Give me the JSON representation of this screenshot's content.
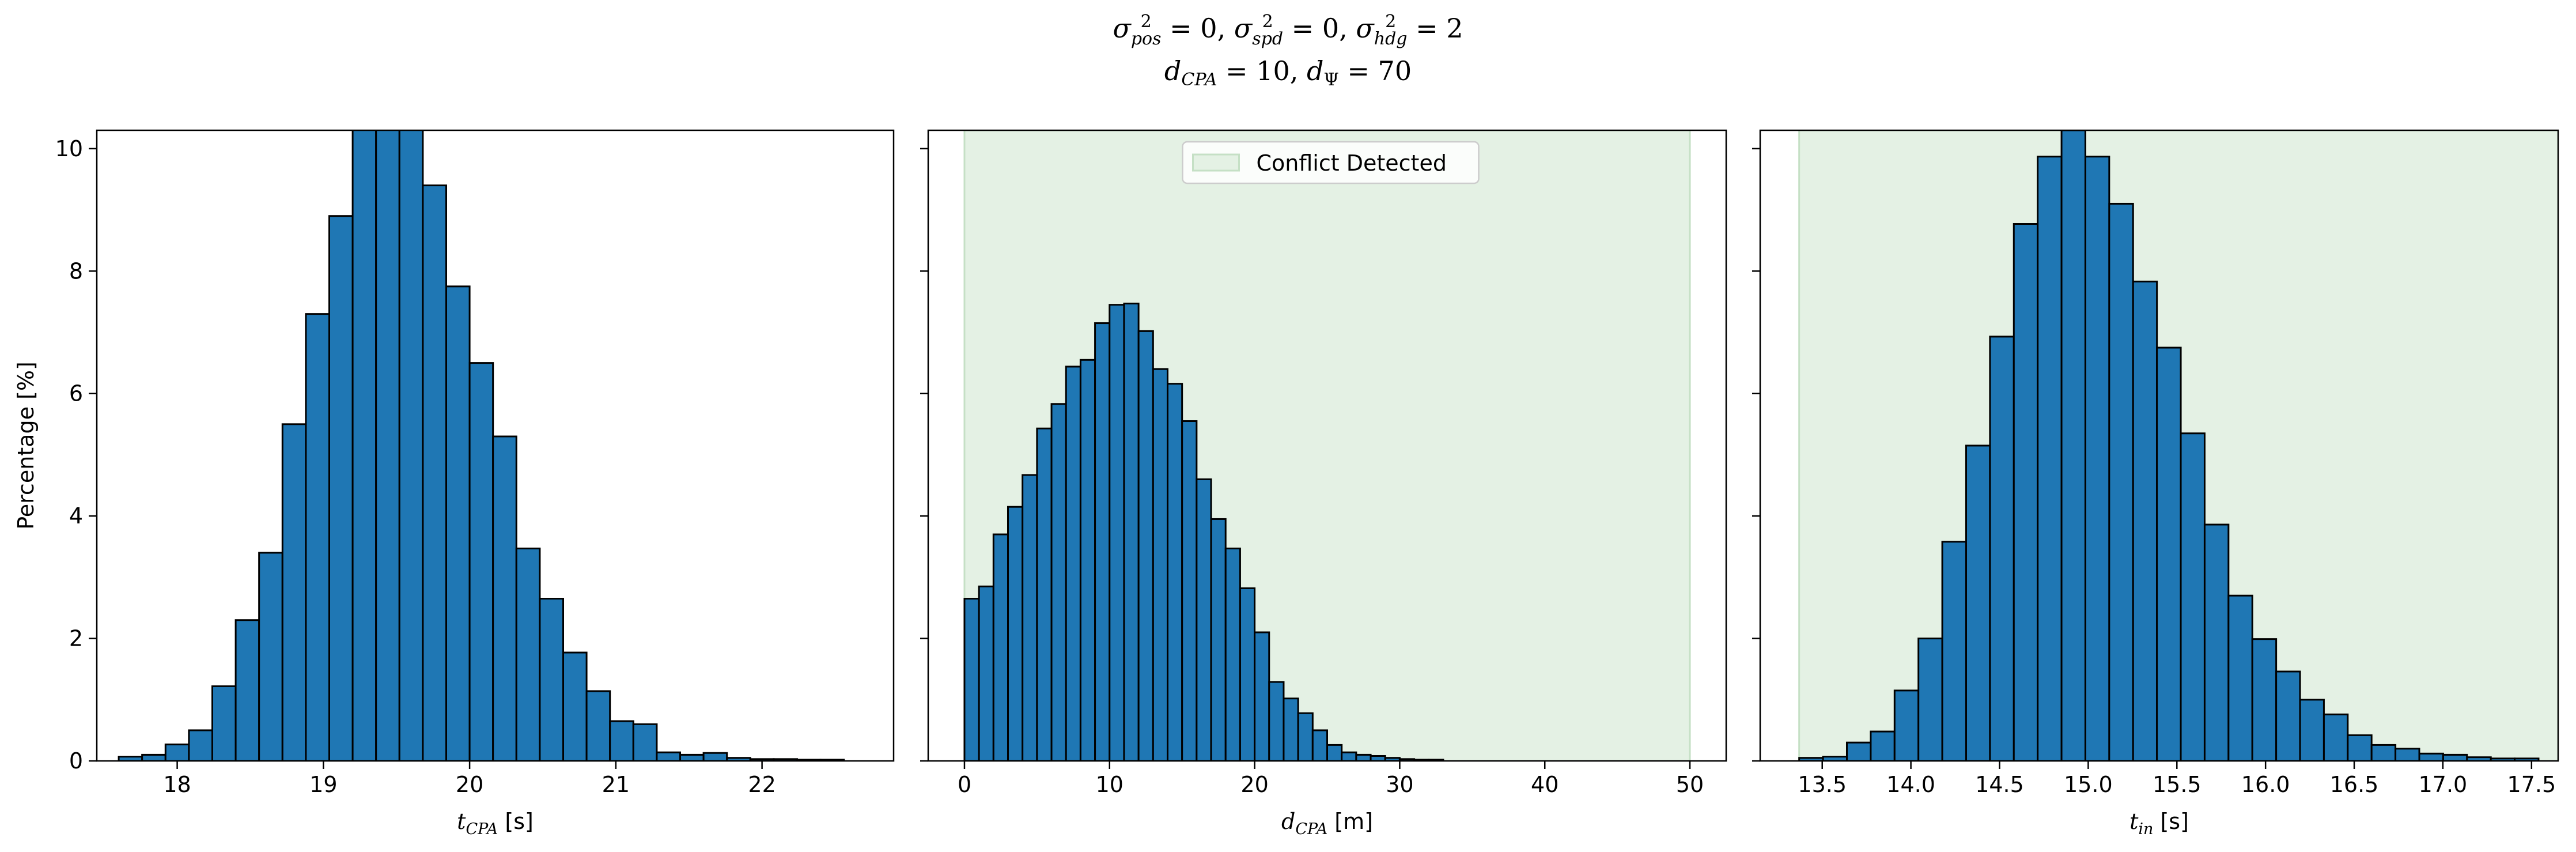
{
  "title_line1": {
    "parts": [
      {
        "sym": "σ",
        "sup": "2",
        "sub": "pos",
        "val": " = 0, "
      },
      {
        "sym": "σ",
        "sup": "2",
        "sub": "spd",
        "val": " = 0, "
      },
      {
        "sym": "σ",
        "sup": "2",
        "sub": "hdg",
        "val": " = 2"
      }
    ]
  },
  "title_line2": {
    "parts": [
      {
        "sym": "d",
        "sub": "CPA",
        "val": " = 10, "
      },
      {
        "sym": "d",
        "sub": "Ψ",
        "val": " = 70"
      }
    ]
  },
  "colors": {
    "bar": "#1f77b4",
    "edge": "#000000",
    "region": "#e4f1e4",
    "region_edge": "#c5e0c5"
  },
  "chart_data": [
    {
      "type": "bar",
      "xlabel_sym": "t",
      "xlabel_sub": "CPA",
      "xlabel_unit": " [s]",
      "ylabel": "Percentage [%]",
      "xlim": [
        17.45,
        22.9
      ],
      "ylim": [
        0,
        10.3
      ],
      "xticks": [
        18,
        19,
        20,
        21,
        22
      ],
      "xtick_labels": [
        "18",
        "19",
        "20",
        "21",
        "22"
      ],
      "yticks": [
        0,
        2,
        4,
        6,
        8,
        10
      ],
      "ytick_labels": [
        "0",
        "2",
        "4",
        "6",
        "8",
        "10"
      ],
      "bin_start": 17.6,
      "bin_width": 0.16,
      "values": [
        0.07,
        0.1,
        0.27,
        0.5,
        1.22,
        2.3,
        3.4,
        5.5,
        7.3,
        8.9,
        10.5,
        10.6,
        10.4,
        9.4,
        7.75,
        6.5,
        5.3,
        3.47,
        2.65,
        1.77,
        1.14,
        0.65,
        0.6,
        0.14,
        0.1,
        0.13,
        0.05,
        0.03,
        0.03,
        0.02,
        0.02
      ]
    },
    {
      "type": "bar",
      "xlabel_sym": "d",
      "xlabel_sub": "CPA",
      "xlabel_unit": " [m]",
      "xlim": [
        -2.5,
        52.5
      ],
      "ylim": [
        0,
        10.3
      ],
      "xticks": [
        0,
        10,
        20,
        30,
        40,
        50
      ],
      "xtick_labels": [
        "0",
        "10",
        "20",
        "30",
        "40",
        "50"
      ],
      "yticks": [
        0,
        2,
        4,
        6,
        8,
        10
      ],
      "bin_start": 0,
      "bin_width": 1,
      "region": [
        0,
        50
      ],
      "legend": "Conflict Detected",
      "legend_loc": "upper center",
      "values": [
        2.65,
        2.85,
        3.7,
        4.15,
        4.67,
        5.43,
        5.83,
        6.44,
        6.55,
        7.15,
        7.45,
        7.47,
        7.02,
        6.4,
        6.16,
        5.55,
        4.6,
        3.95,
        3.47,
        2.82,
        2.1,
        1.29,
        1.02,
        0.78,
        0.5,
        0.26,
        0.14,
        0.1,
        0.08,
        0.05,
        0.03,
        0.02,
        0.02
      ]
    },
    {
      "type": "bar",
      "xlabel_sym": "t",
      "xlabel_sub": "in",
      "xlabel_unit": " [s]",
      "xlim": [
        13.15,
        17.65
      ],
      "ylim": [
        0,
        10.3
      ],
      "xticks": [
        13.5,
        14.0,
        14.5,
        15.0,
        15.5,
        16.0,
        16.5,
        17.0,
        17.5
      ],
      "xtick_labels": [
        "13.5",
        "14.0",
        "14.5",
        "15.0",
        "15.5",
        "16.0",
        "16.5",
        "17.0",
        "17.5"
      ],
      "yticks": [
        0,
        2,
        4,
        6,
        8,
        10
      ],
      "bin_start": 13.37,
      "bin_width": 0.1345,
      "region": [
        13.37,
        17.65
      ],
      "values": [
        0.05,
        0.07,
        0.3,
        0.48,
        1.15,
        2.0,
        3.58,
        5.15,
        6.93,
        8.77,
        9.87,
        10.3,
        9.87,
        9.1,
        7.83,
        6.75,
        5.35,
        3.86,
        2.7,
        1.99,
        1.46,
        1.0,
        0.76,
        0.42,
        0.26,
        0.2,
        0.12,
        0.1,
        0.06,
        0.04,
        0.04
      ]
    }
  ]
}
